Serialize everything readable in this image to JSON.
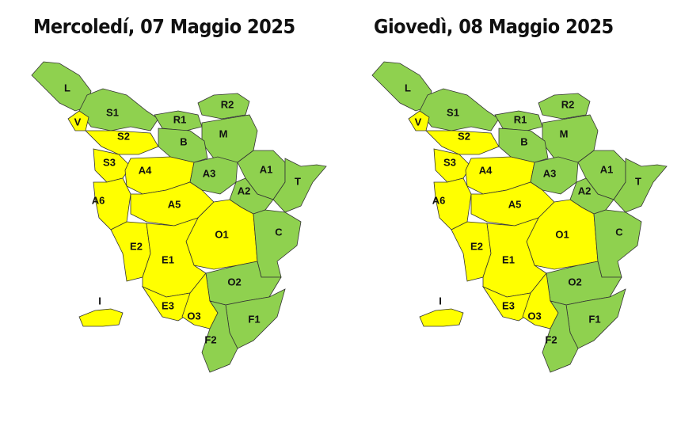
{
  "maps": [
    {
      "title": "Mercoledí, 07 Maggio 2025",
      "zones": [
        {
          "label": "L",
          "color": "#8fd14f"
        },
        {
          "label": "S1",
          "color": "#8fd14f"
        },
        {
          "label": "V",
          "color": "#ffff00"
        },
        {
          "label": "R2",
          "color": "#8fd14f"
        },
        {
          "label": "R1",
          "color": "#8fd14f"
        },
        {
          "label": "M",
          "color": "#8fd14f"
        },
        {
          "label": "B",
          "color": "#8fd14f"
        },
        {
          "label": "S2",
          "color": "#ffff00"
        },
        {
          "label": "S3",
          "color": "#ffff00"
        },
        {
          "label": "A4",
          "color": "#ffff00"
        },
        {
          "label": "A3",
          "color": "#8fd14f"
        },
        {
          "label": "A1",
          "color": "#8fd14f"
        },
        {
          "label": "T",
          "color": "#8fd14f"
        },
        {
          "label": "A2",
          "color": "#8fd14f"
        },
        {
          "label": "A6",
          "color": "#ffff00"
        },
        {
          "label": "A5",
          "color": "#ffff00"
        },
        {
          "label": "O1",
          "color": "#ffff00"
        },
        {
          "label": "C",
          "color": "#8fd14f"
        },
        {
          "label": "E2",
          "color": "#ffff00"
        },
        {
          "label": "E1",
          "color": "#ffff00"
        },
        {
          "label": "O2",
          "color": "#8fd14f"
        },
        {
          "label": "E3",
          "color": "#ffff00"
        },
        {
          "label": "O3",
          "color": "#ffff00"
        },
        {
          "label": "F1",
          "color": "#8fd14f"
        },
        {
          "label": "F2",
          "color": "#8fd14f"
        },
        {
          "label": "I",
          "color": "#ffff00"
        }
      ]
    },
    {
      "title": "Giovedì, 08 Maggio 2025",
      "zones": [
        {
          "label": "L",
          "color": "#8fd14f"
        },
        {
          "label": "S1",
          "color": "#8fd14f"
        },
        {
          "label": "V",
          "color": "#ffff00"
        },
        {
          "label": "R2",
          "color": "#8fd14f"
        },
        {
          "label": "R1",
          "color": "#8fd14f"
        },
        {
          "label": "M",
          "color": "#8fd14f"
        },
        {
          "label": "B",
          "color": "#8fd14f"
        },
        {
          "label": "S2",
          "color": "#ffff00"
        },
        {
          "label": "S3",
          "color": "#ffff00"
        },
        {
          "label": "A4",
          "color": "#ffff00"
        },
        {
          "label": "A3",
          "color": "#8fd14f"
        },
        {
          "label": "A1",
          "color": "#8fd14f"
        },
        {
          "label": "T",
          "color": "#8fd14f"
        },
        {
          "label": "A2",
          "color": "#8fd14f"
        },
        {
          "label": "A6",
          "color": "#ffff00"
        },
        {
          "label": "A5",
          "color": "#ffff00"
        },
        {
          "label": "O1",
          "color": "#ffff00"
        },
        {
          "label": "C",
          "color": "#8fd14f"
        },
        {
          "label": "E2",
          "color": "#ffff00"
        },
        {
          "label": "E1",
          "color": "#ffff00"
        },
        {
          "label": "O2",
          "color": "#8fd14f"
        },
        {
          "label": "E3",
          "color": "#ffff00"
        },
        {
          "label": "O3",
          "color": "#ffff00"
        },
        {
          "label": "F1",
          "color": "#8fd14f"
        },
        {
          "label": "F2",
          "color": "#8fd14f"
        },
        {
          "label": "I",
          "color": "#ffff00"
        }
      ]
    }
  ]
}
